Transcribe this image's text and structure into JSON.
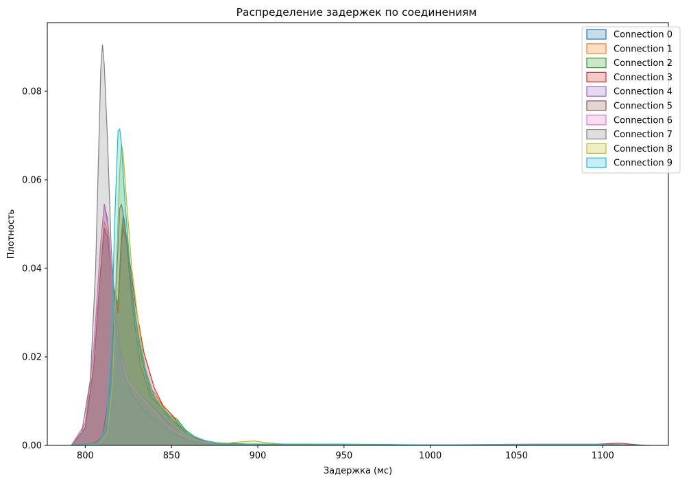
{
  "chart_data": {
    "type": "area",
    "title": "Распределение задержек по соединениям",
    "xlabel": "Задержка (мс)",
    "ylabel": "Плотность",
    "xlim": [
      778,
      1138
    ],
    "ylim": [
      0,
      0.0955
    ],
    "x_ticks": [
      800,
      850,
      900,
      950,
      1000,
      1050,
      1100
    ],
    "y_ticks": [
      0.0,
      0.02,
      0.04,
      0.06,
      0.08
    ],
    "y_tick_labels": [
      "0.00",
      "0.02",
      "0.04",
      "0.06",
      "0.08"
    ],
    "grid": false,
    "legend": "top-right",
    "series": [
      {
        "name": "Connection 0",
        "color": "#1f77b4",
        "points": [
          [
            792,
            0
          ],
          [
            800,
            0.004
          ],
          [
            805,
            0.018
          ],
          [
            809,
            0.04
          ],
          [
            811,
            0.049
          ],
          [
            813,
            0.047
          ],
          [
            816,
            0.036
          ],
          [
            819,
            0.03
          ],
          [
            821,
            0.048
          ],
          [
            822,
            0.0515
          ],
          [
            824,
            0.046
          ],
          [
            827,
            0.032
          ],
          [
            832,
            0.018
          ],
          [
            838,
            0.011
          ],
          [
            843,
            0.009
          ],
          [
            848,
            0.0065
          ],
          [
            853,
            0.005
          ],
          [
            858,
            0.003
          ],
          [
            865,
            0.0015
          ],
          [
            875,
            0.0006
          ],
          [
            900,
            0.0002
          ],
          [
            925,
            0.0003
          ],
          [
            950,
            0.0002
          ],
          [
            1000,
            0.0001
          ],
          [
            1100,
            0.0003
          ],
          [
            1120,
            0
          ]
        ]
      },
      {
        "name": "Connection 1",
        "color": "#ff7f0e",
        "points": [
          [
            792,
            0
          ],
          [
            800,
            0.004
          ],
          [
            805,
            0.018
          ],
          [
            809,
            0.04
          ],
          [
            811,
            0.0505
          ],
          [
            813,
            0.048
          ],
          [
            816,
            0.037
          ],
          [
            819,
            0.031
          ],
          [
            821,
            0.047
          ],
          [
            822,
            0.05
          ],
          [
            824,
            0.046
          ],
          [
            828,
            0.032
          ],
          [
            833,
            0.02
          ],
          [
            838,
            0.013
          ],
          [
            843,
            0.01
          ],
          [
            848,
            0.007
          ],
          [
            853,
            0.0055
          ],
          [
            858,
            0.003
          ],
          [
            865,
            0.0015
          ],
          [
            875,
            0.0005
          ],
          [
            900,
            0.0002
          ],
          [
            950,
            0.0002
          ],
          [
            1000,
            0.0001
          ],
          [
            1100,
            0.0003
          ],
          [
            1120,
            0
          ]
        ]
      },
      {
        "name": "Connection 2",
        "color": "#2ca02c",
        "points": [
          [
            792,
            0
          ],
          [
            800,
            0.004
          ],
          [
            805,
            0.018
          ],
          [
            809,
            0.04
          ],
          [
            811,
            0.049
          ],
          [
            813,
            0.047
          ],
          [
            816,
            0.036
          ],
          [
            819,
            0.032
          ],
          [
            821,
            0.048
          ],
          [
            822,
            0.052
          ],
          [
            824,
            0.047
          ],
          [
            828,
            0.031
          ],
          [
            833,
            0.019
          ],
          [
            838,
            0.012
          ],
          [
            843,
            0.009
          ],
          [
            848,
            0.007
          ],
          [
            853,
            0.006
          ],
          [
            858,
            0.0035
          ],
          [
            865,
            0.0015
          ],
          [
            875,
            0.0006
          ],
          [
            900,
            0.0002
          ],
          [
            950,
            0.0002
          ],
          [
            1000,
            0.0001
          ],
          [
            1100,
            0.0002
          ],
          [
            1120,
            0
          ]
        ]
      },
      {
        "name": "Connection 3",
        "color": "#d62728",
        "points": [
          [
            792,
            0
          ],
          [
            800,
            0.004
          ],
          [
            805,
            0.018
          ],
          [
            809,
            0.04
          ],
          [
            811,
            0.049
          ],
          [
            813,
            0.047
          ],
          [
            816,
            0.036
          ],
          [
            819,
            0.03
          ],
          [
            821,
            0.046
          ],
          [
            822,
            0.049
          ],
          [
            825,
            0.044
          ],
          [
            829,
            0.032
          ],
          [
            834,
            0.021
          ],
          [
            840,
            0.013
          ],
          [
            845,
            0.009
          ],
          [
            850,
            0.007
          ],
          [
            855,
            0.0045
          ],
          [
            860,
            0.0025
          ],
          [
            868,
            0.001
          ],
          [
            880,
            0.0004
          ],
          [
            900,
            0.0002
          ],
          [
            950,
            0.0002
          ],
          [
            1000,
            0.0001
          ],
          [
            1090,
            0.0002
          ],
          [
            1110,
            0.0005
          ],
          [
            1118,
            0.0002
          ],
          [
            1125,
            0
          ]
        ]
      },
      {
        "name": "Connection 4",
        "color": "#9467bd",
        "points": [
          [
            792,
            0
          ],
          [
            800,
            0.005
          ],
          [
            805,
            0.022
          ],
          [
            809,
            0.046
          ],
          [
            811,
            0.0545
          ],
          [
            813,
            0.051
          ],
          [
            816,
            0.036
          ],
          [
            820,
            0.022
          ],
          [
            824,
            0.015
          ],
          [
            830,
            0.012
          ],
          [
            836,
            0.01
          ],
          [
            842,
            0.0075
          ],
          [
            848,
            0.005
          ],
          [
            855,
            0.0025
          ],
          [
            865,
            0.001
          ],
          [
            880,
            0.0003
          ],
          [
            950,
            0.0002
          ],
          [
            1000,
            0.0001
          ],
          [
            1100,
            0.0002
          ],
          [
            1120,
            0
          ]
        ]
      },
      {
        "name": "Connection 5",
        "color": "#8c564b",
        "points": [
          [
            792,
            0
          ],
          [
            805,
            0.0005
          ],
          [
            810,
            0.002
          ],
          [
            814,
            0.012
          ],
          [
            817,
            0.03
          ],
          [
            819,
            0.045
          ],
          [
            820,
            0.0535
          ],
          [
            821,
            0.0545
          ],
          [
            823,
            0.05
          ],
          [
            826,
            0.038
          ],
          [
            830,
            0.026
          ],
          [
            835,
            0.017
          ],
          [
            840,
            0.011
          ],
          [
            845,
            0.008
          ],
          [
            850,
            0.006
          ],
          [
            855,
            0.004
          ],
          [
            860,
            0.0025
          ],
          [
            868,
            0.001
          ],
          [
            880,
            0.0003
          ],
          [
            950,
            0.0002
          ],
          [
            1000,
            0.0001
          ],
          [
            1100,
            0.0002
          ],
          [
            1120,
            0
          ]
        ]
      },
      {
        "name": "Connection 6",
        "color": "#e377c2",
        "points": [
          [
            792,
            0
          ],
          [
            800,
            0.005
          ],
          [
            805,
            0.022
          ],
          [
            809,
            0.046
          ],
          [
            811,
            0.054
          ],
          [
            813,
            0.05
          ],
          [
            816,
            0.035
          ],
          [
            820,
            0.021
          ],
          [
            824,
            0.015
          ],
          [
            830,
            0.012
          ],
          [
            836,
            0.0095
          ],
          [
            842,
            0.007
          ],
          [
            848,
            0.0045
          ],
          [
            855,
            0.0025
          ],
          [
            865,
            0.001
          ],
          [
            880,
            0.0003
          ],
          [
            950,
            0.0002
          ],
          [
            1000,
            0.0001
          ],
          [
            1060,
            0.0003
          ],
          [
            1100,
            0.0003
          ],
          [
            1120,
            0
          ]
        ]
      },
      {
        "name": "Connection 7",
        "color": "#7f7f7f",
        "points": [
          [
            792,
            0
          ],
          [
            798,
            0.003
          ],
          [
            803,
            0.015
          ],
          [
            806,
            0.04
          ],
          [
            808,
            0.07
          ],
          [
            809,
            0.085
          ],
          [
            810,
            0.0905
          ],
          [
            811,
            0.086
          ],
          [
            813,
            0.068
          ],
          [
            815,
            0.045
          ],
          [
            818,
            0.026
          ],
          [
            822,
            0.016
          ],
          [
            828,
            0.011
          ],
          [
            834,
            0.008
          ],
          [
            840,
            0.006
          ],
          [
            846,
            0.004
          ],
          [
            852,
            0.0025
          ],
          [
            860,
            0.001
          ],
          [
            875,
            0.0003
          ],
          [
            950,
            0.0002
          ],
          [
            1000,
            0.0001
          ],
          [
            1100,
            0.0002
          ],
          [
            1120,
            0
          ]
        ]
      },
      {
        "name": "Connection 8",
        "color": "#bcbd22",
        "points": [
          [
            792,
            0
          ],
          [
            808,
            0.0003
          ],
          [
            813,
            0.003
          ],
          [
            816,
            0.015
          ],
          [
            818,
            0.04
          ],
          [
            820,
            0.062
          ],
          [
            821,
            0.068
          ],
          [
            822,
            0.066
          ],
          [
            824,
            0.055
          ],
          [
            827,
            0.04
          ],
          [
            831,
            0.027
          ],
          [
            835,
            0.017
          ],
          [
            840,
            0.011
          ],
          [
            845,
            0.0085
          ],
          [
            850,
            0.0065
          ],
          [
            855,
            0.0045
          ],
          [
            860,
            0.0025
          ],
          [
            870,
            0.001
          ],
          [
            880,
            0.0004
          ],
          [
            890,
            0.0008
          ],
          [
            898,
            0.001
          ],
          [
            905,
            0.0006
          ],
          [
            915,
            0.0003
          ],
          [
            950,
            0.0002
          ],
          [
            1000,
            0.0001
          ],
          [
            1100,
            0.0002
          ],
          [
            1120,
            0
          ]
        ]
      },
      {
        "name": "Connection 9",
        "color": "#17becf",
        "points": [
          [
            792,
            0
          ],
          [
            808,
            0.0005
          ],
          [
            812,
            0.004
          ],
          [
            815,
            0.02
          ],
          [
            817,
            0.05
          ],
          [
            819,
            0.071
          ],
          [
            820,
            0.0715
          ],
          [
            821,
            0.068
          ],
          [
            823,
            0.055
          ],
          [
            826,
            0.04
          ],
          [
            830,
            0.026
          ],
          [
            835,
            0.017
          ],
          [
            840,
            0.011
          ],
          [
            845,
            0.008
          ],
          [
            850,
            0.006
          ],
          [
            855,
            0.0045
          ],
          [
            860,
            0.0025
          ],
          [
            870,
            0.001
          ],
          [
            880,
            0.0003
          ],
          [
            920,
            0.0003
          ],
          [
            950,
            0.0003
          ],
          [
            1000,
            0.0001
          ],
          [
            1100,
            0.0002
          ],
          [
            1128,
            0
          ]
        ]
      }
    ]
  }
}
